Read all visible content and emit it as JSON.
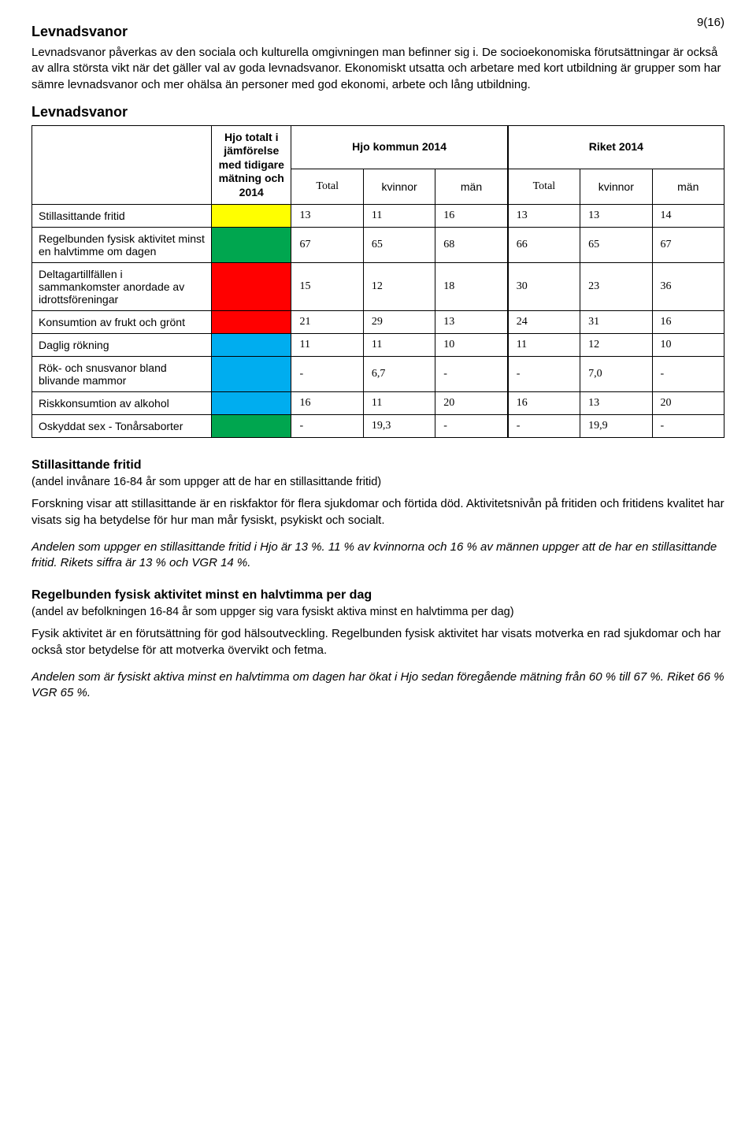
{
  "page_number": "9(16)",
  "heading1": "Levnadsvanor",
  "intro": "Levnadsvanor påverkas av den sociala och kulturella omgivningen man befinner sig i. De socioekonomiska förutsättningar är också av allra största vikt när det gäller val av goda levnadsvanor. Ekonomiskt utsatta och arbetare med kort utbildning är grupper som har sämre levnadsvanor och mer ohälsa än personer med god ekonomi, arbete och lång utbildning.",
  "table_heading": "Levnadsvanor",
  "table": {
    "col1_header": "Hjo totalt i jämförelse med tidigare mätning och 2014",
    "group1_header": "Hjo kommun 2014",
    "group2_header": "Riket 2014",
    "sub_total": "Total",
    "sub_kv": "kvinnor",
    "sub_man": "män",
    "colors": {
      "yellow": "#ffff00",
      "green": "#00a64f",
      "red": "#ff0000",
      "blue": "#00adef"
    },
    "rows": [
      {
        "label": "Stillasittande fritid",
        "color": "yellow",
        "v": [
          "13",
          "11",
          "16",
          "13",
          "13",
          "14"
        ]
      },
      {
        "label": "Regelbunden fysisk aktivitet minst en halvtimme om dagen",
        "color": "green",
        "v": [
          "67",
          "65",
          "68",
          "66",
          "65",
          "67"
        ]
      },
      {
        "label": "Deltagartillfällen i sammankomster anordade av idrottsföreningar",
        "color": "red",
        "v": [
          "15",
          "12",
          "18",
          "30",
          "23",
          "36"
        ]
      },
      {
        "label": "Konsumtion av frukt och grönt",
        "color": "red",
        "v": [
          "21",
          "29",
          "13",
          "24",
          "31",
          "16"
        ]
      },
      {
        "label": "Daglig rökning",
        "color": "blue",
        "v": [
          "11",
          "11",
          "10",
          "11",
          "12",
          "10"
        ]
      },
      {
        "label": "Rök- och snusvanor bland blivande mammor",
        "color": "blue",
        "v": [
          "-",
          "6,7",
          "-",
          "-",
          "7,0",
          "-"
        ]
      },
      {
        "label": "Riskkonsumtion av alkohol",
        "color": "blue",
        "v": [
          "16",
          "11",
          "20",
          "16",
          "13",
          "20"
        ]
      },
      {
        "label": "Oskyddat sex - Tonårsaborter",
        "color": "green",
        "v": [
          "-",
          "19,3",
          "-",
          "-",
          "19,9",
          "-"
        ]
      }
    ]
  },
  "sect1_title": "Stillasittande fritid",
  "sect1_sub": "(andel invånare 16-84 år som uppger att de har en stillasittande fritid)",
  "sect1_p1": "Forskning visar att stillasittande är en riskfaktor för flera sjukdomar och förtida död. Aktivitetsnivån på fritiden och fritidens kvalitet har visats sig ha betydelse för hur man mår fysiskt, psykiskt och socialt.",
  "sect1_p2": "Andelen som uppger en stillasittande fritid i Hjo är 13 %. 11 % av kvinnorna och 16 % av männen uppger att de har en stillasittande fritid. Rikets siffra är 13 % och VGR 14 %.",
  "sect2_title": "Regelbunden fysisk aktivitet minst en halvtimma per dag",
  "sect2_sub": "(andel av befolkningen 16-84 år som uppger sig vara fysiskt aktiva minst en halvtimma per dag)",
  "sect2_p1": "Fysik aktivitet är en förutsättning för god hälsoutveckling. Regelbunden fysisk aktivitet har visats motverka en rad sjukdomar och har också stor betydelse för att motverka övervikt och fetma.",
  "sect2_p2": "Andelen som är fysiskt aktiva minst en halvtimma om dagen har ökat i Hjo sedan föregående mätning från 60 % till 67 %. Riket 66 % VGR 65 %."
}
